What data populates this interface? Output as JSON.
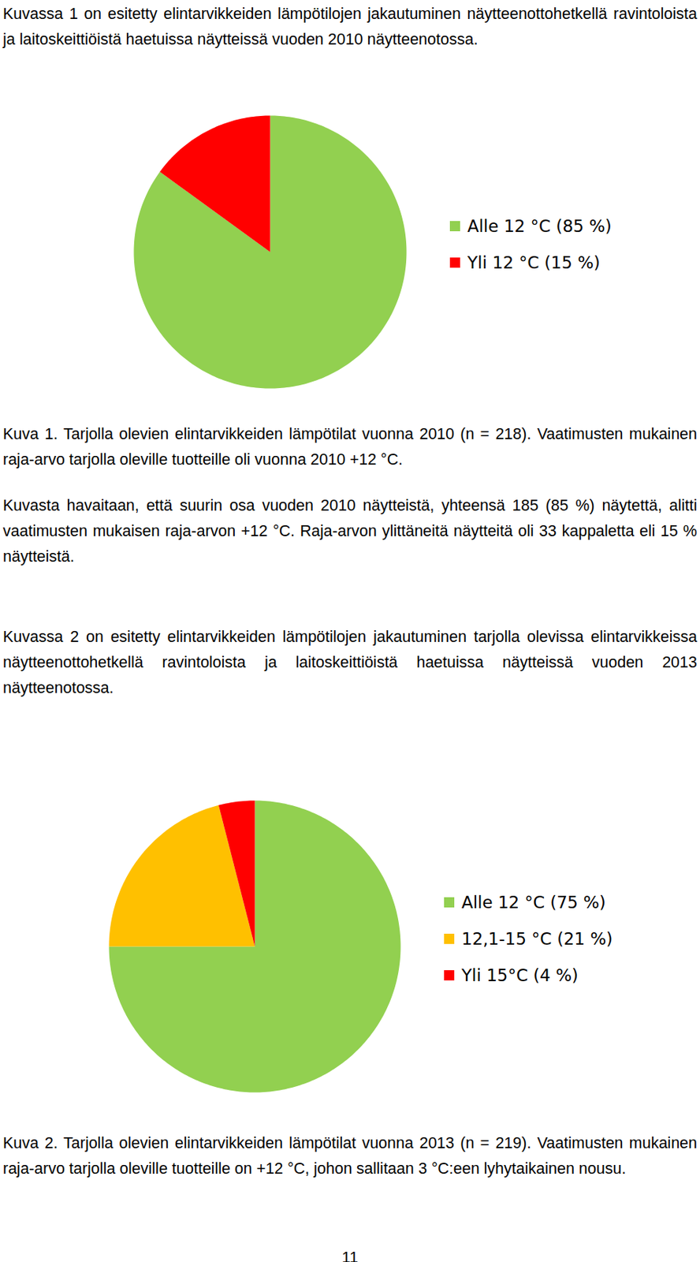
{
  "document": {
    "paragraph_1": "Kuvassa 1 on esitetty elintarvikkeiden lämpötilojen jakautuminen näytteenottohetkellä ravintoloista ja laitoskeittiöistä haetuissa näytteissä vuoden 2010 näytteenotossa.",
    "caption_1": "Kuva 1. Tarjolla olevien elintarvikkeiden lämpötilat vuonna 2010 (n = 218). Vaatimusten mukainen raja-arvo tarjolla oleville tuotteille oli vuonna 2010 +12 °C.",
    "paragraph_2": "Kuvasta havaitaan, että suurin osa vuoden 2010 näytteistä, yhteensä 185 (85 %) näytettä, alitti vaatimusten mukaisen raja-arvon +12 °C. Raja-arvon ylittäneitä näytteitä oli 33 kappaletta eli 15 % näytteistä.",
    "paragraph_3": "Kuvassa 2 on esitetty elintarvikkeiden lämpötilojen jakautuminen tarjolla olevissa elintarvikkeissa näytteenottohetkellä ravintoloista ja laitoskeittiöistä haetuissa näytteissä vuoden 2013 näytteenotossa.",
    "caption_2": "Kuva 2. Tarjolla olevien elintarvikkeiden lämpötilat vuonna 2013 (n = 219). Vaatimusten mukainen raja-arvo tarjolla oleville tuotteille on +12 °C, johon sallitaan 3 °C:een lyhytaikainen nousu.",
    "page_number": "11"
  },
  "chart_data": [
    {
      "type": "pie",
      "categories": [
        "Alle 12 °C (85 %)",
        "Yli 12 °C (15 %)"
      ],
      "values": [
        85,
        15
      ],
      "colors": [
        "#92d050",
        "#ff0000"
      ],
      "legend": "right"
    },
    {
      "type": "pie",
      "categories": [
        "Alle 12 °C (75 %)",
        "12,1-15 °C (21 %)",
        "Yli 15°C (4 %)"
      ],
      "values": [
        75,
        21,
        4
      ],
      "colors": [
        "#92d050",
        "#ffc000",
        "#ff0000"
      ],
      "legend": "right"
    }
  ]
}
